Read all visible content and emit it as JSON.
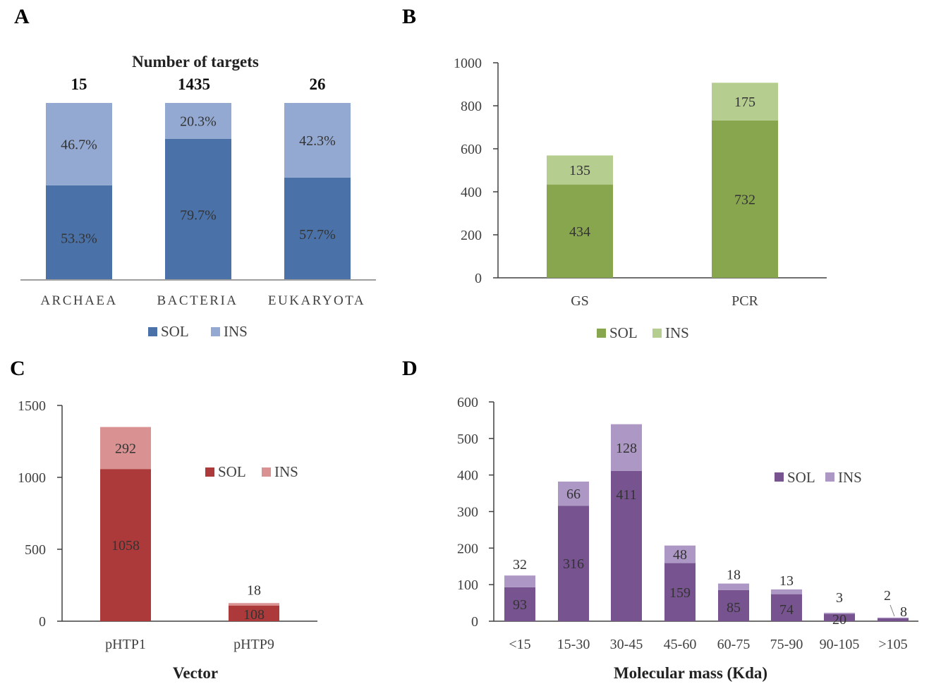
{
  "chart_data": [
    {
      "panel": "A",
      "type": "bar",
      "stacked": true,
      "normalized": true,
      "title": "Number of targets",
      "categories": [
        "ARCHAEA",
        "BACTERIA",
        "EUKARYOTA"
      ],
      "totals": [
        "15",
        "1435",
        "26"
      ],
      "series": [
        {
          "name": "SOL",
          "values": [
            53.3,
            79.7,
            57.7
          ],
          "labels": [
            "53.3%",
            "79.7%",
            "57.7%"
          ],
          "color": "#4a72a8"
        },
        {
          "name": "INS",
          "values": [
            46.7,
            20.3,
            42.3
          ],
          "labels": [
            "46.7%",
            "20.3%",
            "42.3%"
          ],
          "color": "#93a9d2"
        }
      ],
      "ylim": [
        0,
        100
      ],
      "legend": "bottom"
    },
    {
      "panel": "B",
      "type": "bar",
      "stacked": true,
      "categories": [
        "GS",
        "PCR"
      ],
      "series": [
        {
          "name": "SOL",
          "values": [
            434,
            732
          ],
          "labels": [
            "434",
            "732"
          ],
          "color": "#88a64d"
        },
        {
          "name": "INS",
          "values": [
            135,
            175
          ],
          "labels": [
            "135",
            "175"
          ],
          "color": "#b5cd8f"
        }
      ],
      "ylim": [
        0,
        1000
      ],
      "yticks": [
        "0",
        "200",
        "400",
        "600",
        "800",
        "1000"
      ],
      "legend": "bottom"
    },
    {
      "panel": "C",
      "type": "bar",
      "stacked": true,
      "xlabel": "Vector",
      "categories": [
        "pHTP1",
        "pHTP9"
      ],
      "series": [
        {
          "name": "SOL",
          "values": [
            1058,
            108
          ],
          "labels": [
            "1058",
            "108"
          ],
          "color": "#ad3a3a"
        },
        {
          "name": "INS",
          "values": [
            292,
            18
          ],
          "labels": [
            "292",
            "18"
          ],
          "color": "#d99191"
        }
      ],
      "ylim": [
        0,
        1500
      ],
      "yticks": [
        "0",
        "500",
        "1000",
        "1500"
      ],
      "legend": "top-right"
    },
    {
      "panel": "D",
      "type": "bar",
      "stacked": true,
      "xlabel": "Molecular mass (Kda)",
      "categories": [
        "<15",
        "15-30",
        "30-45",
        "45-60",
        "60-75",
        "75-90",
        "90-105",
        ">105"
      ],
      "series": [
        {
          "name": "SOL",
          "values": [
            93,
            316,
            411,
            159,
            85,
            74,
            20,
            8
          ],
          "labels": [
            "93",
            "316",
            "411",
            "159",
            "85",
            "74",
            "20",
            "8"
          ],
          "color": "#775390"
        },
        {
          "name": "INS",
          "values": [
            32,
            66,
            128,
            48,
            18,
            13,
            3,
            2
          ],
          "labels": [
            "32",
            "66",
            "128",
            "48",
            "18",
            "13",
            "3",
            "2"
          ],
          "color": "#ad97c5"
        }
      ],
      "ylim": [
        0,
        600
      ],
      "yticks": [
        "0",
        "100",
        "200",
        "300",
        "400",
        "500",
        "600"
      ],
      "legend": "top-right"
    }
  ],
  "panel_labels": [
    "A",
    "B",
    "C",
    "D"
  ],
  "legend_labels": {
    "sol": "SOL",
    "ins": "INS"
  }
}
